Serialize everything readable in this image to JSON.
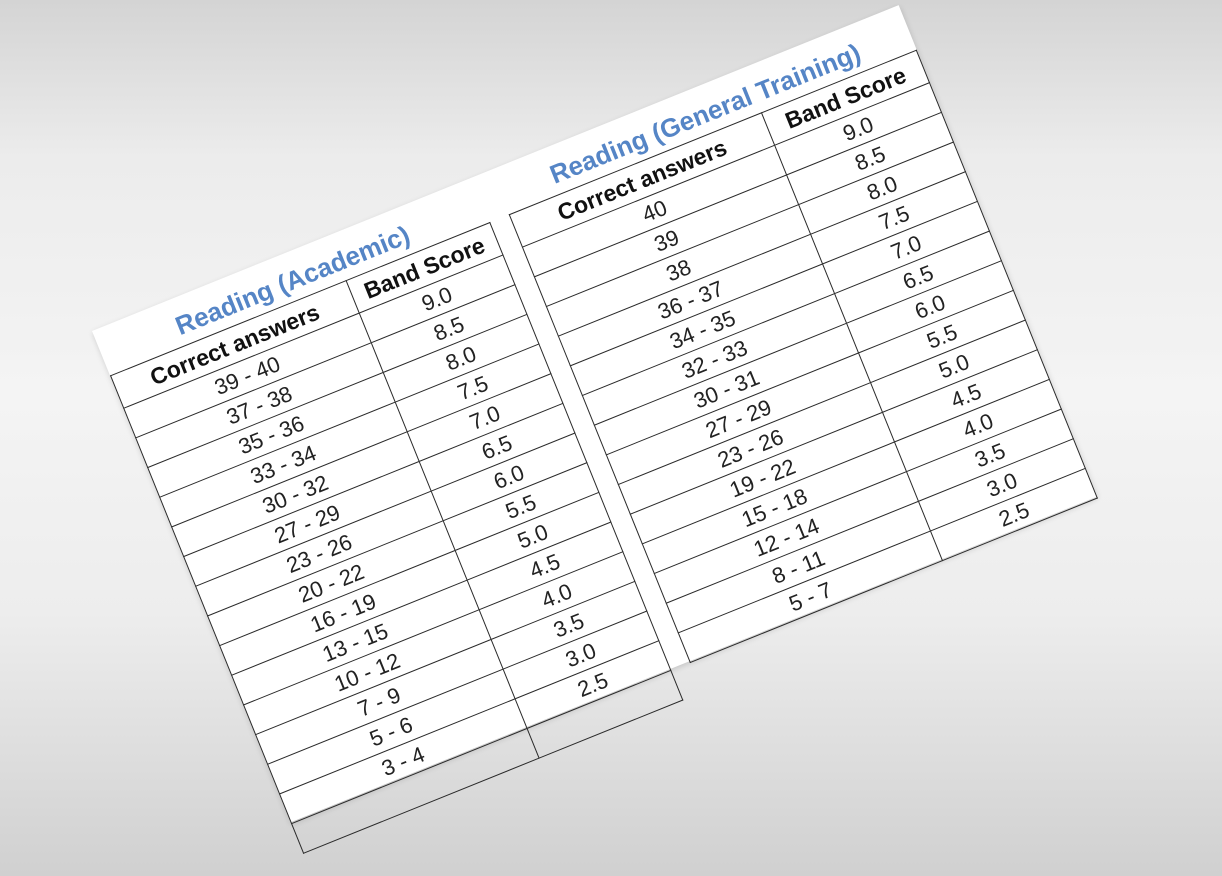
{
  "academic": {
    "title": "Reading (Academic)",
    "headers": {
      "correct": "Correct answers",
      "band": "Band Score"
    },
    "rows": [
      {
        "correct": "39 - 40",
        "band": "9.0"
      },
      {
        "correct": "37 - 38",
        "band": "8.5"
      },
      {
        "correct": "35 - 36",
        "band": "8.0"
      },
      {
        "correct": "33 - 34",
        "band": "7.5"
      },
      {
        "correct": "30 - 32",
        "band": "7.0"
      },
      {
        "correct": "27 - 29",
        "band": "6.5"
      },
      {
        "correct": "23 - 26",
        "band": "6.0"
      },
      {
        "correct": "20 - 22",
        "band": "5.5"
      },
      {
        "correct": "16 - 19",
        "band": "5.0"
      },
      {
        "correct": "13 - 15",
        "band": "4.5"
      },
      {
        "correct": "10 - 12",
        "band": "4.0"
      },
      {
        "correct": "7 - 9",
        "band": "3.5"
      },
      {
        "correct": "5 - 6",
        "band": "3.0"
      },
      {
        "correct": "3 - 4",
        "band": "2.5"
      }
    ]
  },
  "general": {
    "title": "Reading (General Training)",
    "headers": {
      "correct": "Correct answers",
      "band": "Band Score"
    },
    "rows": [
      {
        "correct": "40",
        "band": "9.0"
      },
      {
        "correct": "39",
        "band": "8.5"
      },
      {
        "correct": "38",
        "band": "8.0"
      },
      {
        "correct": "36 - 37",
        "band": "7.5"
      },
      {
        "correct": "34 - 35",
        "band": "7.0"
      },
      {
        "correct": "32 - 33",
        "band": "6.5"
      },
      {
        "correct": "30 - 31",
        "band": "6.0"
      },
      {
        "correct": "27 - 29",
        "band": "5.5"
      },
      {
        "correct": "23 - 26",
        "band": "5.0"
      },
      {
        "correct": "19 - 22",
        "band": "4.5"
      },
      {
        "correct": "15 - 18",
        "band": "4.0"
      },
      {
        "correct": "12 - 14",
        "band": "3.5"
      },
      {
        "correct": "8 - 11",
        "band": "3.0"
      },
      {
        "correct": "5 - 7",
        "band": "2.5"
      }
    ]
  }
}
